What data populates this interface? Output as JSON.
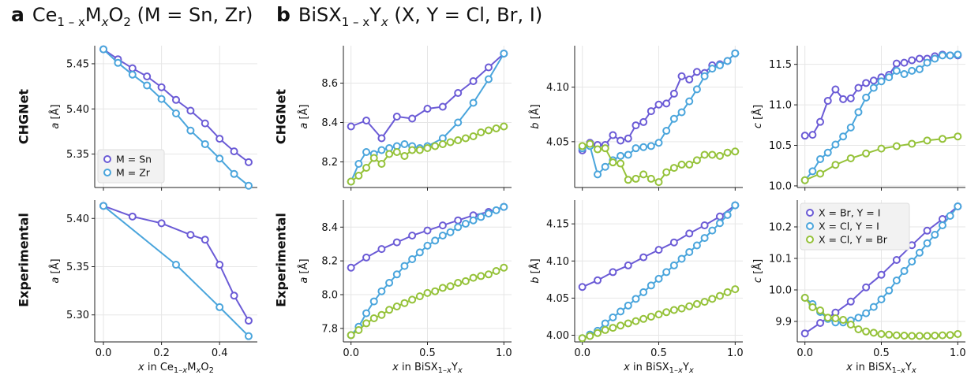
{
  "panel_a": {
    "letter": "a",
    "title": "Ce",
    "title_sub": "1 – x",
    "title_m": "M",
    "title_x": "x",
    "title_o": "O",
    "title_2": "2",
    "title_rest": "(M = Sn, Zr)"
  },
  "panel_b": {
    "letter": "b",
    "title": "BiSX",
    "title_sub": "1 – x",
    "title_y": "Y",
    "title_x": "x",
    "title_rest": "(X, Y = Cl, Br, I)"
  },
  "row_labels": [
    "CHGNet",
    "Experimental"
  ],
  "colors": {
    "Sn": "#6b5bd6",
    "Zr": "#4aa5dc",
    "BrI": "#6b5bd6",
    "ClI": "#4aa5dc",
    "ClBr": "#95c239"
  },
  "chart_data": [
    {
      "type": "line",
      "id": "a-chgnet",
      "row": "CHGNet",
      "ylabel": "a [Å]",
      "xlabel": "",
      "xlim": [
        -0.03,
        0.53
      ],
      "ylim": [
        5.313,
        5.47
      ],
      "xticks": [
        0.0,
        0.2,
        0.4
      ],
      "yticks": [
        5.35,
        5.4,
        5.45
      ],
      "legend": "lower-left",
      "series": [
        {
          "name": "M = Sn",
          "color": "#6b5bd6",
          "x": [
            0.0,
            0.05,
            0.1,
            0.15,
            0.2,
            0.25,
            0.3,
            0.35,
            0.4,
            0.45,
            0.5
          ],
          "y": [
            5.466,
            5.455,
            5.445,
            5.436,
            5.424,
            5.41,
            5.398,
            5.384,
            5.367,
            5.353,
            5.341
          ]
        },
        {
          "name": "M = Zr",
          "color": "#4aa5dc",
          "x": [
            0.0,
            0.05,
            0.1,
            0.15,
            0.2,
            0.25,
            0.3,
            0.35,
            0.4,
            0.45,
            0.5
          ],
          "y": [
            5.466,
            5.451,
            5.438,
            5.426,
            5.411,
            5.395,
            5.376,
            5.361,
            5.345,
            5.328,
            5.315
          ]
        }
      ]
    },
    {
      "type": "line",
      "id": "a-exp",
      "row": "Experimental",
      "ylabel": "a [Å]",
      "xlabel": "x in Ce1–xMxO2",
      "xlim": [
        -0.03,
        0.53
      ],
      "ylim": [
        5.272,
        5.419
      ],
      "xticks": [
        0.0,
        0.2,
        0.4
      ],
      "yticks": [
        5.3,
        5.35,
        5.4
      ],
      "series": [
        {
          "name": "M = Sn",
          "color": "#6b5bd6",
          "x": [
            0.0,
            0.1,
            0.2,
            0.3,
            0.35,
            0.4,
            0.45,
            0.5
          ],
          "y": [
            5.413,
            5.402,
            5.395,
            5.383,
            5.378,
            5.352,
            5.32,
            5.294
          ]
        },
        {
          "name": "M = Zr",
          "color": "#4aa5dc",
          "x": [
            0.0,
            0.25,
            0.4,
            0.5
          ],
          "y": [
            5.413,
            5.352,
            5.308,
            5.278
          ]
        }
      ]
    },
    {
      "type": "line",
      "id": "b-a-chgnet",
      "row": "CHGNet",
      "ylabel": "a [Å]",
      "xlabel": "",
      "xlim": [
        -0.05,
        1.05
      ],
      "ylim": [
        8.07,
        8.79
      ],
      "xticks": [
        0.0,
        0.5,
        1.0
      ],
      "yticks": [
        8.2,
        8.4,
        8.6
      ],
      "series": [
        {
          "name": "X = Br, Y = I",
          "color": "#6b5bd6",
          "x": [
            0.0,
            0.1,
            0.2,
            0.3,
            0.4,
            0.5,
            0.6,
            0.7,
            0.8,
            0.9,
            1.0
          ],
          "y": [
            8.38,
            8.41,
            8.32,
            8.43,
            8.42,
            8.47,
            8.48,
            8.55,
            8.61,
            8.68,
            8.75
          ]
        },
        {
          "name": "X = Cl, Y = I",
          "color": "#4aa5dc",
          "x": [
            0.0,
            0.05,
            0.1,
            0.15,
            0.2,
            0.25,
            0.3,
            0.35,
            0.4,
            0.45,
            0.5,
            0.6,
            0.7,
            0.8,
            0.9,
            1.0
          ],
          "y": [
            8.1,
            8.19,
            8.25,
            8.24,
            8.26,
            8.27,
            8.28,
            8.29,
            8.28,
            8.27,
            8.28,
            8.32,
            8.4,
            8.5,
            8.62,
            8.75
          ]
        },
        {
          "name": "X = Cl, Y = Br",
          "color": "#95c239",
          "x": [
            0.0,
            0.05,
            0.1,
            0.15,
            0.2,
            0.25,
            0.3,
            0.35,
            0.4,
            0.45,
            0.5,
            0.55,
            0.6,
            0.65,
            0.7,
            0.75,
            0.8,
            0.85,
            0.9,
            0.95,
            1.0
          ],
          "y": [
            8.1,
            8.13,
            8.17,
            8.22,
            8.19,
            8.24,
            8.25,
            8.23,
            8.26,
            8.26,
            8.27,
            8.28,
            8.29,
            8.3,
            8.31,
            8.32,
            8.33,
            8.35,
            8.36,
            8.37,
            8.38
          ]
        }
      ]
    },
    {
      "type": "line",
      "id": "b-b-chgnet",
      "row": "CHGNet",
      "ylabel": "b [Å]",
      "xlabel": "",
      "xlim": [
        -0.05,
        1.05
      ],
      "ylim": [
        4.008,
        4.138
      ],
      "xticks": [
        0.0,
        0.5,
        1.0
      ],
      "yticks": [
        4.05,
        4.1
      ],
      "series": [
        {
          "name": "X = Br, Y = I",
          "color": "#6b5bd6",
          "x": [
            0.0,
            0.05,
            0.1,
            0.15,
            0.2,
            0.25,
            0.3,
            0.35,
            0.4,
            0.45,
            0.5,
            0.55,
            0.6,
            0.65,
            0.7,
            0.75,
            0.8,
            0.85,
            0.9,
            0.95,
            1.0
          ],
          "y": [
            4.042,
            4.049,
            4.047,
            4.047,
            4.056,
            4.051,
            4.053,
            4.065,
            4.068,
            4.078,
            4.084,
            4.085,
            4.094,
            4.11,
            4.107,
            4.114,
            4.113,
            4.12,
            4.121,
            4.124,
            4.131
          ]
        },
        {
          "name": "X = Cl, Y = I",
          "color": "#4aa5dc",
          "x": [
            0.0,
            0.05,
            0.1,
            0.15,
            0.2,
            0.25,
            0.3,
            0.35,
            0.4,
            0.45,
            0.5,
            0.55,
            0.6,
            0.65,
            0.7,
            0.75,
            0.8,
            0.85,
            0.9,
            0.95,
            1.0
          ],
          "y": [
            4.044,
            4.046,
            4.02,
            4.027,
            4.033,
            4.037,
            4.038,
            4.044,
            4.045,
            4.046,
            4.049,
            4.06,
            4.071,
            4.077,
            4.087,
            4.098,
            4.11,
            4.117,
            4.12,
            4.124,
            4.131
          ]
        },
        {
          "name": "X = Cl, Y = Br",
          "color": "#95c239",
          "x": [
            0.0,
            0.05,
            0.1,
            0.15,
            0.2,
            0.25,
            0.3,
            0.35,
            0.4,
            0.45,
            0.5,
            0.55,
            0.6,
            0.65,
            0.7,
            0.75,
            0.8,
            0.85,
            0.9,
            0.95,
            1.0
          ],
          "y": [
            4.046,
            4.048,
            4.043,
            4.044,
            4.031,
            4.03,
            4.015,
            4.016,
            4.02,
            4.016,
            4.013,
            4.022,
            4.026,
            4.029,
            4.029,
            4.033,
            4.038,
            4.038,
            4.037,
            4.04,
            4.041
          ]
        }
      ]
    },
    {
      "type": "line",
      "id": "b-c-chgnet",
      "row": "CHGNet",
      "ylabel": "c [Å]",
      "xlabel": "",
      "xlim": [
        -0.05,
        1.05
      ],
      "ylim": [
        9.98,
        11.73
      ],
      "xticks": [
        0.0,
        0.5,
        1.0
      ],
      "yticks": [
        10.0,
        10.5,
        11.0,
        11.5
      ],
      "series": [
        {
          "name": "X = Br, Y = I",
          "color": "#6b5bd6",
          "x": [
            0.0,
            0.05,
            0.1,
            0.15,
            0.2,
            0.25,
            0.3,
            0.35,
            0.4,
            0.45,
            0.5,
            0.55,
            0.6,
            0.65,
            0.7,
            0.75,
            0.8,
            0.85,
            0.9,
            0.95,
            1.0
          ],
          "y": [
            10.62,
            10.63,
            10.79,
            11.05,
            11.19,
            11.07,
            11.08,
            11.21,
            11.27,
            11.3,
            11.34,
            11.37,
            11.51,
            11.52,
            11.55,
            11.57,
            11.57,
            11.6,
            11.62,
            11.61,
            11.61
          ]
        },
        {
          "name": "X = Cl, Y = I",
          "color": "#4aa5dc",
          "x": [
            0.0,
            0.05,
            0.1,
            0.15,
            0.2,
            0.25,
            0.3,
            0.35,
            0.4,
            0.45,
            0.5,
            0.55,
            0.6,
            0.65,
            0.7,
            0.75,
            0.8,
            0.85,
            0.9,
            0.95,
            1.0
          ],
          "y": [
            10.07,
            10.18,
            10.33,
            10.41,
            10.51,
            10.61,
            10.72,
            10.91,
            11.09,
            11.21,
            11.29,
            11.34,
            11.42,
            11.38,
            11.42,
            11.44,
            11.52,
            11.57,
            11.61,
            11.61,
            11.62
          ]
        },
        {
          "name": "X = Cl, Y = Br",
          "color": "#95c239",
          "x": [
            0.0,
            0.1,
            0.2,
            0.3,
            0.4,
            0.5,
            0.6,
            0.7,
            0.8,
            0.9,
            1.0
          ],
          "y": [
            10.07,
            10.15,
            10.26,
            10.34,
            10.4,
            10.46,
            10.49,
            10.52,
            10.56,
            10.58,
            10.61
          ]
        }
      ]
    },
    {
      "type": "line",
      "id": "b-a-exp",
      "row": "Experimental",
      "ylabel": "a [Å]",
      "xlabel": "x in BiSX1–xYx",
      "xlim": [
        -0.05,
        1.05
      ],
      "ylim": [
        7.72,
        8.56
      ],
      "xticks": [
        0.0,
        0.5,
        1.0
      ],
      "yticks": [
        7.8,
        8.0,
        8.2,
        8.4
      ],
      "series": [
        {
          "name": "X = Br, Y = I",
          "color": "#6b5bd6",
          "x": [
            0.0,
            0.1,
            0.2,
            0.3,
            0.4,
            0.5,
            0.6,
            0.7,
            0.8,
            0.9,
            1.0
          ],
          "y": [
            8.16,
            8.22,
            8.27,
            8.31,
            8.35,
            8.38,
            8.41,
            8.44,
            8.47,
            8.49,
            8.52
          ]
        },
        {
          "name": "X = Cl, Y = I",
          "color": "#4aa5dc",
          "x": [
            0.0,
            0.05,
            0.1,
            0.15,
            0.2,
            0.25,
            0.3,
            0.35,
            0.4,
            0.45,
            0.5,
            0.55,
            0.6,
            0.65,
            0.7,
            0.75,
            0.8,
            0.85,
            0.9,
            0.95,
            1.0
          ],
          "y": [
            7.76,
            7.81,
            7.89,
            7.96,
            8.02,
            8.07,
            8.12,
            8.17,
            8.21,
            8.25,
            8.29,
            8.32,
            8.35,
            8.37,
            8.4,
            8.42,
            8.44,
            8.46,
            8.48,
            8.5,
            8.52
          ]
        },
        {
          "name": "X = Cl, Y = Br",
          "color": "#95c239",
          "x": [
            0.0,
            0.05,
            0.1,
            0.15,
            0.2,
            0.25,
            0.3,
            0.35,
            0.4,
            0.45,
            0.5,
            0.55,
            0.6,
            0.65,
            0.7,
            0.75,
            0.8,
            0.85,
            0.9,
            0.95,
            1.0
          ],
          "y": [
            7.76,
            7.79,
            7.83,
            7.86,
            7.88,
            7.91,
            7.93,
            7.95,
            7.97,
            7.99,
            8.01,
            8.02,
            8.04,
            8.05,
            8.07,
            8.08,
            8.1,
            8.11,
            8.12,
            8.14,
            8.16
          ]
        }
      ]
    },
    {
      "type": "line",
      "id": "b-b-exp",
      "row": "Experimental",
      "ylabel": "b [Å]",
      "xlabel": "x in BiSX1–xYx",
      "xlim": [
        -0.05,
        1.05
      ],
      "ylim": [
        3.991,
        4.182
      ],
      "xticks": [
        0.0,
        0.5,
        1.0
      ],
      "yticks": [
        4.0,
        4.05,
        4.1,
        4.15
      ],
      "series": [
        {
          "name": "X = Br, Y = I",
          "color": "#6b5bd6",
          "x": [
            0.0,
            0.1,
            0.2,
            0.3,
            0.4,
            0.5,
            0.6,
            0.7,
            0.8,
            0.9,
            1.0
          ],
          "y": [
            4.065,
            4.074,
            4.085,
            4.094,
            4.105,
            4.115,
            4.125,
            4.137,
            4.148,
            4.16,
            4.175
          ]
        },
        {
          "name": "X = Cl, Y = I",
          "color": "#4aa5dc",
          "x": [
            0.0,
            0.05,
            0.1,
            0.15,
            0.2,
            0.25,
            0.3,
            0.35,
            0.4,
            0.45,
            0.5,
            0.55,
            0.6,
            0.65,
            0.7,
            0.75,
            0.8,
            0.85,
            0.9,
            0.95,
            1.0
          ],
          "y": [
            3.996,
            4.001,
            4.006,
            4.016,
            4.024,
            4.032,
            4.04,
            4.049,
            4.058,
            4.067,
            4.076,
            4.085,
            4.094,
            4.103,
            4.112,
            4.121,
            4.131,
            4.141,
            4.151,
            4.162,
            4.175
          ]
        },
        {
          "name": "X = Cl, Y = Br",
          "color": "#95c239",
          "x": [
            0.0,
            0.05,
            0.1,
            0.15,
            0.2,
            0.25,
            0.3,
            0.35,
            0.4,
            0.45,
            0.5,
            0.55,
            0.6,
            0.65,
            0.7,
            0.75,
            0.8,
            0.85,
            0.9,
            0.95,
            1.0
          ],
          "y": [
            3.996,
            3.999,
            4.003,
            4.007,
            4.01,
            4.013,
            4.016,
            4.019,
            4.022,
            4.025,
            4.028,
            4.031,
            4.034,
            4.036,
            4.039,
            4.042,
            4.045,
            4.049,
            4.053,
            4.058,
            4.062
          ]
        }
      ]
    },
    {
      "type": "line",
      "id": "b-c-exp",
      "row": "Experimental",
      "ylabel": "c [Å]",
      "xlabel": "x in BiSX1–xYx",
      "xlim": [
        -0.05,
        1.05
      ],
      "ylim": [
        9.835,
        10.285
      ],
      "xticks": [
        0.0,
        0.5,
        1.0
      ],
      "yticks": [
        9.9,
        10.0,
        10.1,
        10.2
      ],
      "legend": "top-left",
      "series": [
        {
          "name": "X = Br, Y = I",
          "color": "#6b5bd6",
          "x": [
            0.0,
            0.1,
            0.2,
            0.3,
            0.4,
            0.5,
            0.6,
            0.7,
            0.8,
            0.9,
            1.0
          ],
          "y": [
            9.862,
            9.895,
            9.928,
            9.963,
            10.008,
            10.048,
            10.095,
            10.142,
            10.188,
            10.225,
            10.265
          ]
        },
        {
          "name": "X = Cl, Y = I",
          "color": "#4aa5dc",
          "x": [
            0.0,
            0.05,
            0.1,
            0.15,
            0.2,
            0.25,
            0.3,
            0.35,
            0.4,
            0.45,
            0.5,
            0.55,
            0.6,
            0.65,
            0.7,
            0.75,
            0.8,
            0.85,
            0.9,
            0.95,
            1.0
          ],
          "y": [
            9.975,
            9.955,
            9.93,
            9.908,
            9.897,
            9.897,
            9.903,
            9.912,
            9.926,
            9.946,
            9.97,
            9.998,
            10.03,
            10.06,
            10.09,
            10.118,
            10.148,
            10.175,
            10.205,
            10.235,
            10.265
          ]
        },
        {
          "name": "X = Cl, Y = Br",
          "color": "#95c239",
          "x": [
            0.0,
            0.05,
            0.1,
            0.15,
            0.2,
            0.25,
            0.3,
            0.35,
            0.4,
            0.45,
            0.5,
            0.55,
            0.6,
            0.65,
            0.7,
            0.75,
            0.8,
            0.85,
            0.9,
            0.95,
            1.0
          ],
          "y": [
            9.975,
            9.945,
            9.935,
            9.912,
            9.91,
            9.905,
            9.89,
            9.875,
            9.868,
            9.864,
            9.86,
            9.858,
            9.856,
            9.855,
            9.854,
            9.854,
            9.854,
            9.855,
            9.856,
            9.857,
            9.86
          ]
        }
      ]
    }
  ]
}
